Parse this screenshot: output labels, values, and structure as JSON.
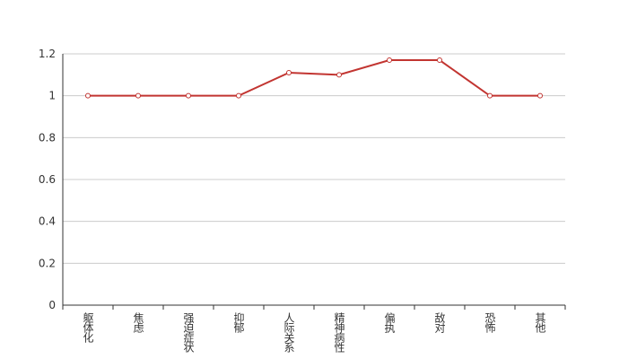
{
  "chart_data": {
    "type": "line",
    "categories": [
      "躯体化",
      "焦虑",
      "强迫症状",
      "抑郁",
      "人际关系",
      "精神病性",
      "偏执",
      "敌对",
      "恐怖",
      "其他"
    ],
    "values": [
      1,
      1,
      1,
      1,
      1.11,
      1.1,
      1.17,
      1.17,
      1,
      1
    ],
    "color": "#c23531",
    "ylim": [
      0,
      1.2
    ],
    "yticks": [
      0,
      0.2,
      0.4,
      0.6,
      0.8,
      1,
      1.2
    ],
    "grid": true
  }
}
